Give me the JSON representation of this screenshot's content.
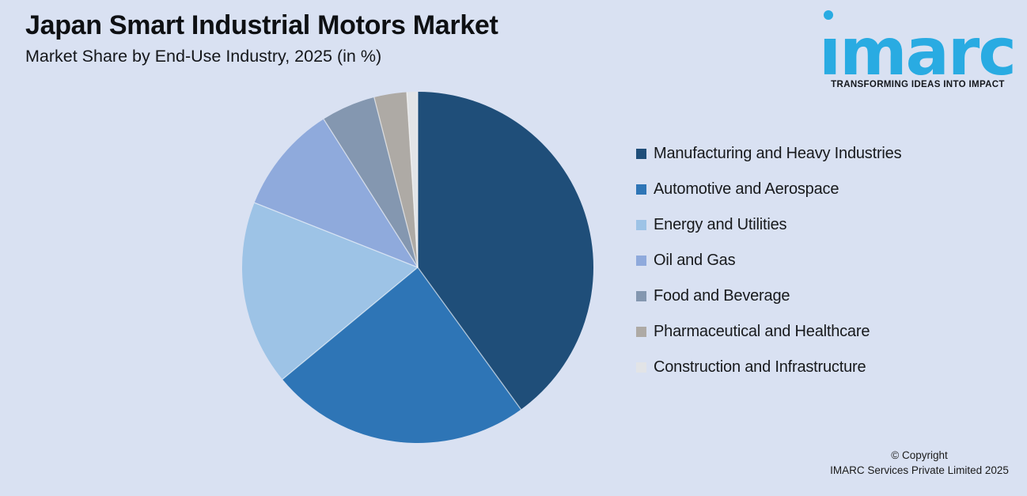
{
  "header": {
    "title": "Japan Smart Industrial Motors Market",
    "subtitle": "Market Share by End-Use Industry, 2025 (in %)"
  },
  "logo": {
    "wordmark": "imarc",
    "tagline": "TRANSFORMING IDEAS INTO IMPACT",
    "brand_color": "#29ABE2"
  },
  "chart_data": {
    "type": "pie",
    "title": "Japan Smart Industrial Motors Market",
    "subtitle": "Market Share by End-Use Industry, 2025 (in %)",
    "unit": "%",
    "categories": [
      "Manufacturing and Heavy Industries",
      "Automotive and Aerospace",
      "Energy and Utilities",
      "Oil and Gas",
      "Food and Beverage",
      "Pharmaceutical and Healthcare",
      "Construction and Infrastructure"
    ],
    "values": [
      40,
      24,
      17,
      10,
      5,
      3,
      1
    ],
    "colors": [
      "#1F4E79",
      "#2E75B6",
      "#9DC3E6",
      "#8FAADC",
      "#8497B0",
      "#AEAAA5",
      "#E2E4E7"
    ],
    "start_angle_deg": 0,
    "direction": "clockwise",
    "legend_position": "right",
    "data_labels_shown": false,
    "background": "#D9E1F2",
    "separator_color": "rgba(255,255,255,0.6)"
  },
  "footer": {
    "copyright_line1": "© Copyright",
    "copyright_line2": "IMARC Services Private Limited 2025"
  }
}
